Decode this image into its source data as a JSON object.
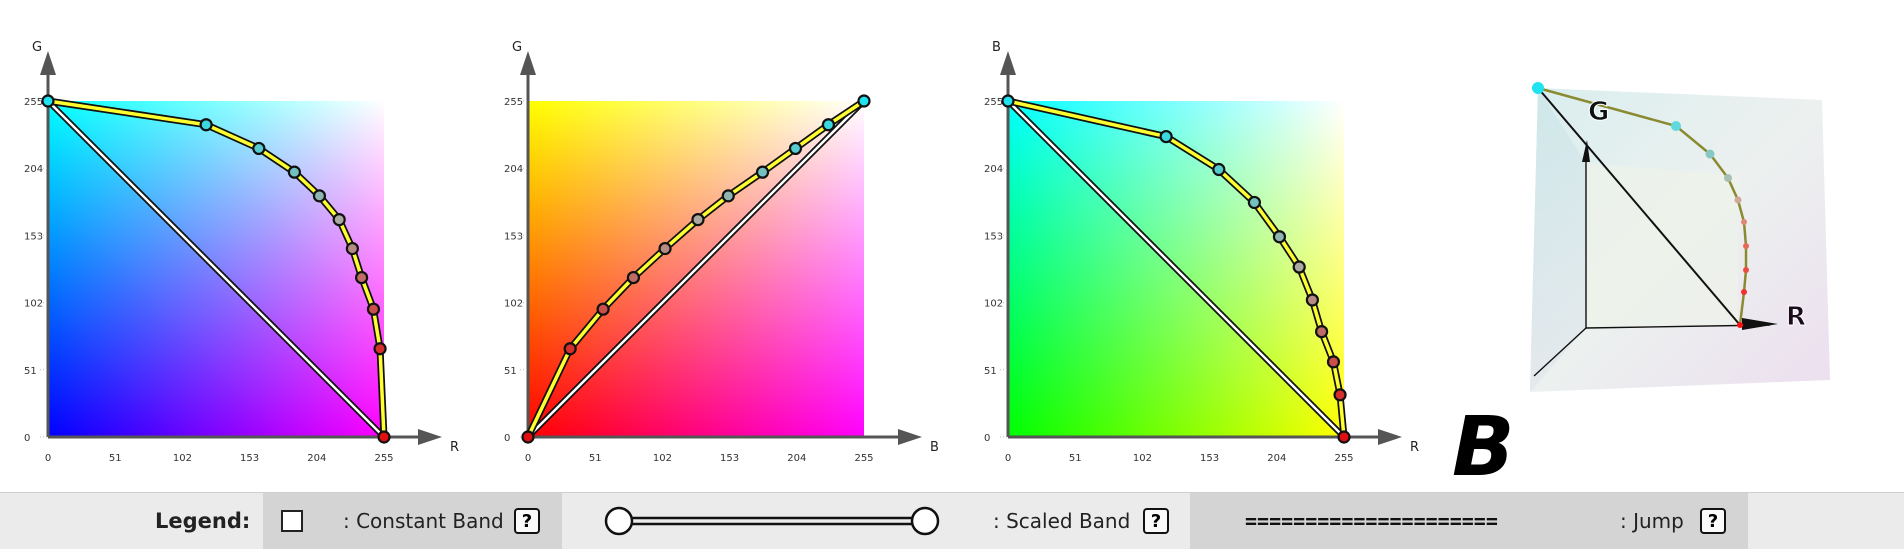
{
  "colors": {
    "curve_yellow": "#ffff30",
    "node_cyan": "#1fe3f0",
    "node_red": "#e01010",
    "legend_bg": "#ebebeb",
    "legend_seg_dark": "#d4d4d4"
  },
  "chart_data": [
    {
      "type": "line",
      "xlabel": "R",
      "ylabel": "G",
      "xticks": [
        "0",
        "51",
        "102",
        "153",
        "204",
        "255"
      ],
      "yticks": [
        "0",
        "51",
        "102",
        "153",
        "204",
        "255"
      ],
      "xlim": [
        0,
        255
      ],
      "ylim": [
        0,
        255
      ],
      "background": "RG plane, B=255 at origin",
      "series": [
        {
          "values": [
            [
              0,
              255
            ],
            [
              120,
              237
            ],
            [
              160,
              219
            ],
            [
              187,
              201
            ],
            [
              206,
              183
            ],
            [
              221,
              165
            ],
            [
              231,
              143
            ],
            [
              238,
              121
            ],
            [
              247,
              97
            ],
            [
              252,
              67
            ],
            [
              255,
              0
            ]
          ]
        }
      ],
      "diagonal": [
        [
          0,
          255
        ],
        [
          255,
          0
        ]
      ]
    },
    {
      "type": "line",
      "xlabel": "B",
      "ylabel": "G",
      "xticks": [
        "0",
        "51",
        "102",
        "153",
        "204",
        "255"
      ],
      "yticks": [
        "0",
        "51",
        "102",
        "153",
        "204",
        "255"
      ],
      "xlim": [
        0,
        255
      ],
      "ylim": [
        0,
        255
      ],
      "background": "BG plane, R=255",
      "series": [
        {
          "values": [
            [
              0,
              0
            ],
            [
              32,
              67
            ],
            [
              57,
              97
            ],
            [
              80,
              121
            ],
            [
              104,
              143
            ],
            [
              129,
              165
            ],
            [
              152,
              183
            ],
            [
              178,
              201
            ],
            [
              203,
              219
            ],
            [
              228,
              237
            ],
            [
              255,
              255
            ]
          ]
        }
      ],
      "diagonal": [
        [
          0,
          0
        ],
        [
          255,
          255
        ]
      ]
    },
    {
      "type": "line",
      "xlabel": "R",
      "ylabel": "B",
      "xticks": [
        "0",
        "51",
        "102",
        "153",
        "204",
        "255"
      ],
      "yticks": [
        "0",
        "51",
        "102",
        "153",
        "204",
        "255"
      ],
      "xlim": [
        0,
        255
      ],
      "ylim": [
        0,
        255
      ],
      "background": "RB plane, G=255",
      "series": [
        {
          "values": [
            [
              0,
              255
            ],
            [
              120,
              228
            ],
            [
              160,
              203
            ],
            [
              187,
              178
            ],
            [
              206,
              152
            ],
            [
              221,
              129
            ],
            [
              231,
              104
            ],
            [
              238,
              80
            ],
            [
              247,
              57
            ],
            [
              252,
              32
            ],
            [
              255,
              0
            ]
          ]
        }
      ],
      "diagonal": [
        [
          0,
          255
        ],
        [
          255,
          0
        ]
      ]
    }
  ],
  "cube": {
    "axis_labels": [
      "G",
      "R",
      "B"
    ]
  },
  "legend": {
    "title": "Legend:",
    "constant_label": ": Constant Band",
    "scaled_label": ": Scaled Band",
    "jump_symbol": "=====================",
    "jump_label": ": Jump",
    "help": "?"
  }
}
